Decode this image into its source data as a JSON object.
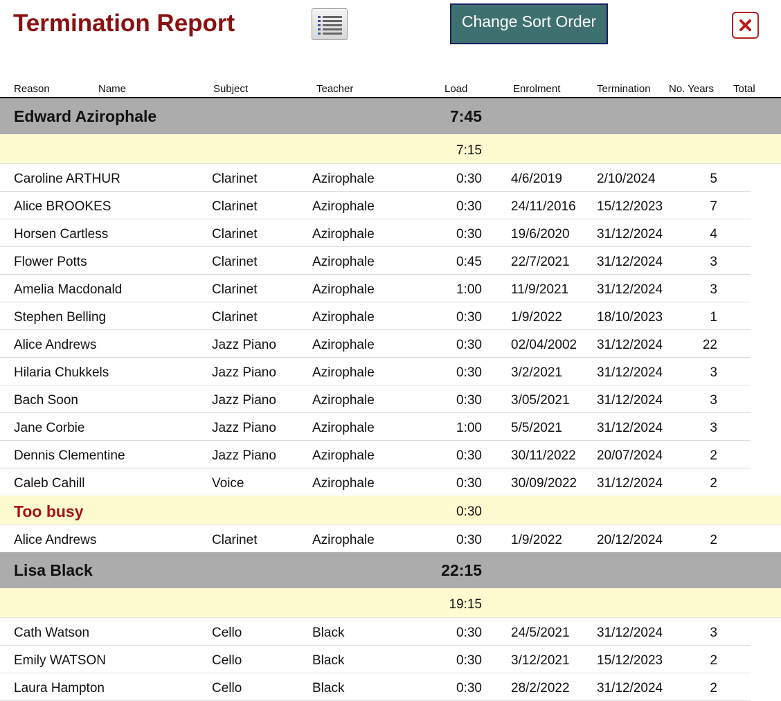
{
  "title": "Termination Report",
  "toolbar": {
    "sort_label": "Change Sort Order",
    "list_icon": "list-report-icon",
    "close_icon": "close-x-icon"
  },
  "columns": {
    "reason": "Reason",
    "name": "Name",
    "subject": "Subject",
    "teacher": "Teacher",
    "load": "Load",
    "enrolment": "Enrolment",
    "termination": "Termination",
    "years": "No. Years",
    "total": "Total"
  },
  "colors": {
    "title": "#8b0f0f",
    "sort_button": "#3f7070",
    "teacher_band": "#acacac",
    "reason_band": "#fffbd0",
    "reason_text": "#a31414",
    "close": "#b22020"
  },
  "groups": [
    {
      "teacher": "Edward Azirophale",
      "load": "7:45",
      "reasons": [
        {
          "label": "",
          "load": "7:15",
          "rows": [
            {
              "name": "Caroline ARTHUR",
              "subject": "Clarinet",
              "teacher": "Azirophale",
              "load": "0:30",
              "enrolment": "4/6/2019",
              "termination": "2/10/2024",
              "years": "5"
            },
            {
              "name": "Alice BROOKES",
              "subject": "Clarinet",
              "teacher": "Azirophale",
              "load": "0:30",
              "enrolment": "24/11/2016",
              "termination": "15/12/2023",
              "years": "7"
            },
            {
              "name": "Horsen Cartless",
              "subject": "Clarinet",
              "teacher": "Azirophale",
              "load": "0:30",
              "enrolment": "19/6/2020",
              "termination": "31/12/2024",
              "years": "4"
            },
            {
              "name": "Flower Potts",
              "subject": "Clarinet",
              "teacher": "Azirophale",
              "load": "0:45",
              "enrolment": "22/7/2021",
              "termination": "31/12/2024",
              "years": "3"
            },
            {
              "name": "Amelia Macdonald",
              "subject": "Clarinet",
              "teacher": "Azirophale",
              "load": "1:00",
              "enrolment": "11/9/2021",
              "termination": "31/12/2024",
              "years": "3"
            },
            {
              "name": "Stephen Belling",
              "subject": "Clarinet",
              "teacher": "Azirophale",
              "load": "0:30",
              "enrolment": "1/9/2022",
              "termination": "18/10/2023",
              "years": "1"
            },
            {
              "name": "Alice Andrews",
              "subject": "Jazz Piano",
              "teacher": "Azirophale",
              "load": "0:30",
              "enrolment": "02/04/2002",
              "termination": "31/12/2024",
              "years": "22"
            },
            {
              "name": "Hilaria Chukkels",
              "subject": "Jazz Piano",
              "teacher": "Azirophale",
              "load": "0:30",
              "enrolment": "3/2/2021",
              "termination": "31/12/2024",
              "years": "3"
            },
            {
              "name": "Bach Soon",
              "subject": "Jazz Piano",
              "teacher": "Azirophale",
              "load": "0:30",
              "enrolment": "3/05/2021",
              "termination": "31/12/2024",
              "years": "3"
            },
            {
              "name": "Jane Corbie",
              "subject": "Jazz Piano",
              "teacher": "Azirophale",
              "load": "1:00",
              "enrolment": "5/5/2021",
              "termination": "31/12/2024",
              "years": "3"
            },
            {
              "name": "Dennis Clementine",
              "subject": "Jazz Piano",
              "teacher": "Azirophale",
              "load": "0:30",
              "enrolment": "30/11/2022",
              "termination": "20/07/2024",
              "years": "2"
            },
            {
              "name": "Caleb Cahill",
              "subject": "Voice",
              "teacher": "Azirophale",
              "load": "0:30",
              "enrolment": "30/09/2022",
              "termination": "31/12/2024",
              "years": "2"
            }
          ]
        },
        {
          "label": "Too busy",
          "load": "0:30",
          "rows": [
            {
              "name": "Alice Andrews",
              "subject": "Clarinet",
              "teacher": "Azirophale",
              "load": "0:30",
              "enrolment": "1/9/2022",
              "termination": "20/12/2024",
              "years": "2"
            }
          ]
        }
      ]
    },
    {
      "teacher": "Lisa Black",
      "load": "22:15",
      "reasons": [
        {
          "label": "",
          "load": "19:15",
          "rows": [
            {
              "name": "Cath Watson",
              "subject": "Cello",
              "teacher": "Black",
              "load": "0:30",
              "enrolment": "24/5/2021",
              "termination": "31/12/2024",
              "years": "3"
            },
            {
              "name": "Emily WATSON",
              "subject": "Cello",
              "teacher": "Black",
              "load": "0:30",
              "enrolment": "3/12/2021",
              "termination": "15/12/2023",
              "years": "2"
            },
            {
              "name": "Laura Hampton",
              "subject": "Cello",
              "teacher": "Black",
              "load": "0:30",
              "enrolment": "28/2/2022",
              "termination": "31/12/2024",
              "years": "2"
            }
          ]
        }
      ]
    }
  ]
}
